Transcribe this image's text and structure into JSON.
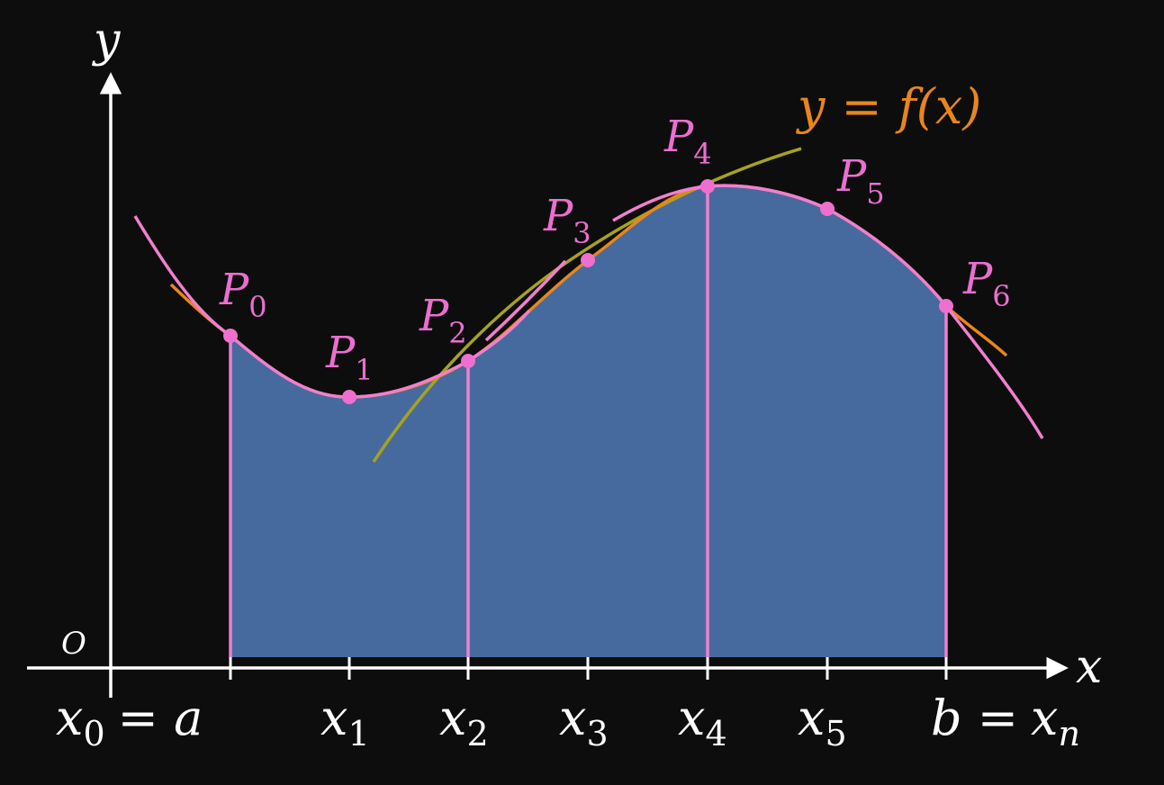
{
  "colors": {
    "background": "#0d0d0d",
    "axes": "#ffffff",
    "curve": "#f07fd0",
    "function_curve": "#e8861c",
    "tangent_curve": "#a7a21e",
    "fill": "#466a9e",
    "points": "#ef6fcf",
    "labels_pink": "#ea6fd0",
    "labels_orange": "#e8861c",
    "labels_white": "#ffffff"
  },
  "axes": {
    "y_label": "y",
    "x_label": "x",
    "origin_label": "O"
  },
  "function_label": {
    "lhs": "y",
    "eq": "=",
    "rhs": "f(x)"
  },
  "points": [
    {
      "name": "P",
      "sub": "0"
    },
    {
      "name": "P",
      "sub": "1"
    },
    {
      "name": "P",
      "sub": "2"
    },
    {
      "name": "P",
      "sub": "3"
    },
    {
      "name": "P",
      "sub": "4"
    },
    {
      "name": "P",
      "sub": "5"
    },
    {
      "name": "P",
      "sub": "6"
    }
  ],
  "ticks": [
    {
      "base": "x",
      "sub": "0",
      "suffix": "= a"
    },
    {
      "base": "x",
      "sub": "1",
      "suffix": ""
    },
    {
      "base": "x",
      "sub": "2",
      "suffix": ""
    },
    {
      "base": "x",
      "sub": "3",
      "suffix": ""
    },
    {
      "base": "x",
      "sub": "4",
      "suffix": ""
    },
    {
      "base": "x",
      "sub": "5",
      "suffix": ""
    },
    {
      "prefix": "b =",
      "base": "x",
      "sub": "n"
    }
  ]
}
